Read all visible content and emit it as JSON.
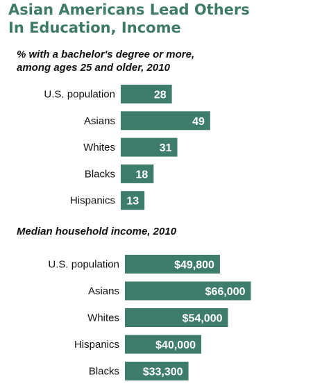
{
  "title": {
    "line1": "Asian Americans Lead Others",
    "line2": "In Education, Income"
  },
  "colors": {
    "bar": "#3e7d6c",
    "title": "#3d7a68",
    "value_label": "#ffffff",
    "category_label": "#111111"
  },
  "chart_data": [
    {
      "type": "bar",
      "orientation": "horizontal",
      "title_lines": [
        "% with a bachelor's degree or more,",
        "among ages 25 and older, 2010"
      ],
      "categories": [
        "U.S. population",
        "Asians",
        "Whites",
        "Blacks",
        "Hispanics"
      ],
      "values": [
        28,
        49,
        31,
        18,
        13
      ],
      "labels": [
        "28",
        "49",
        "31",
        "18",
        "13"
      ]
    },
    {
      "type": "bar",
      "orientation": "horizontal",
      "title_lines": [
        "Median household income, 2010"
      ],
      "categories": [
        "U.S. population",
        "Asians",
        "Whites",
        "Hispanics",
        "Blacks"
      ],
      "values": [
        49800,
        66000,
        54000,
        40000,
        33300
      ],
      "labels": [
        "$49,800",
        "$66,000",
        "$54,000",
        "$40,000",
        "$33,300"
      ]
    }
  ]
}
